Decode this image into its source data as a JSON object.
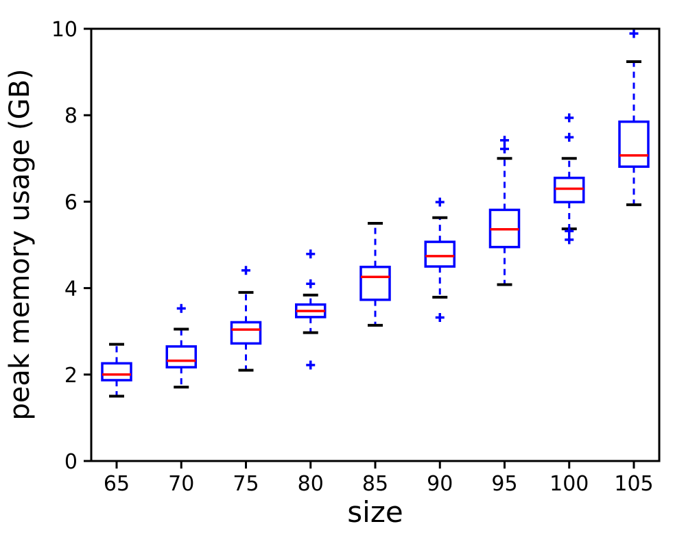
{
  "figure": {
    "background": "#ffffff"
  },
  "chart_data": {
    "type": "boxplot",
    "title": "",
    "xlabel": "size",
    "ylabel": "peak memory usage (GB)",
    "categories": [
      65,
      70,
      75,
      80,
      85,
      90,
      95,
      100,
      105
    ],
    "yticks": [
      0,
      2,
      4,
      6,
      8,
      10
    ],
    "ylim": [
      0,
      10
    ],
    "grid": false,
    "legend": null,
    "colors": {
      "box": "#0000ff",
      "median": "#ff0000",
      "whisker": "#0000ff",
      "cap": "#000000",
      "flier": "#0000ff",
      "axis": "#000000",
      "background": "#ffffff"
    },
    "series": [
      {
        "category": 65,
        "whislo": 1.5,
        "q1": 1.87,
        "med": 2.0,
        "q3": 2.26,
        "whishi": 2.7,
        "fliers": []
      },
      {
        "category": 70,
        "whislo": 1.71,
        "q1": 2.17,
        "med": 2.32,
        "q3": 2.65,
        "whishi": 3.05,
        "fliers": [
          3.53
        ]
      },
      {
        "category": 75,
        "whislo": 2.1,
        "q1": 2.72,
        "med": 3.04,
        "q3": 3.21,
        "whishi": 3.9,
        "fliers": [
          4.41
        ]
      },
      {
        "category": 80,
        "whislo": 2.97,
        "q1": 3.33,
        "med": 3.47,
        "q3": 3.62,
        "whishi": 3.84,
        "fliers": [
          4.79,
          4.1,
          2.22
        ]
      },
      {
        "category": 85,
        "whislo": 3.14,
        "q1": 3.73,
        "med": 4.26,
        "q3": 4.49,
        "whishi": 5.5,
        "fliers": []
      },
      {
        "category": 90,
        "whislo": 3.79,
        "q1": 4.5,
        "med": 4.74,
        "q3": 5.07,
        "whishi": 5.63,
        "fliers": [
          5.99,
          3.32
        ]
      },
      {
        "category": 95,
        "whislo": 4.08,
        "q1": 4.95,
        "med": 5.36,
        "q3": 5.81,
        "whishi": 7.0,
        "fliers": [
          7.42,
          7.22
        ]
      },
      {
        "category": 100,
        "whislo": 5.37,
        "q1": 5.99,
        "med": 6.3,
        "q3": 6.55,
        "whishi": 7.0,
        "fliers": [
          7.94,
          7.49,
          5.32,
          5.12
        ]
      },
      {
        "category": 105,
        "whislo": 5.93,
        "q1": 6.81,
        "med": 7.07,
        "q3": 7.85,
        "whishi": 9.24,
        "fliers": [
          9.89
        ]
      }
    ]
  }
}
